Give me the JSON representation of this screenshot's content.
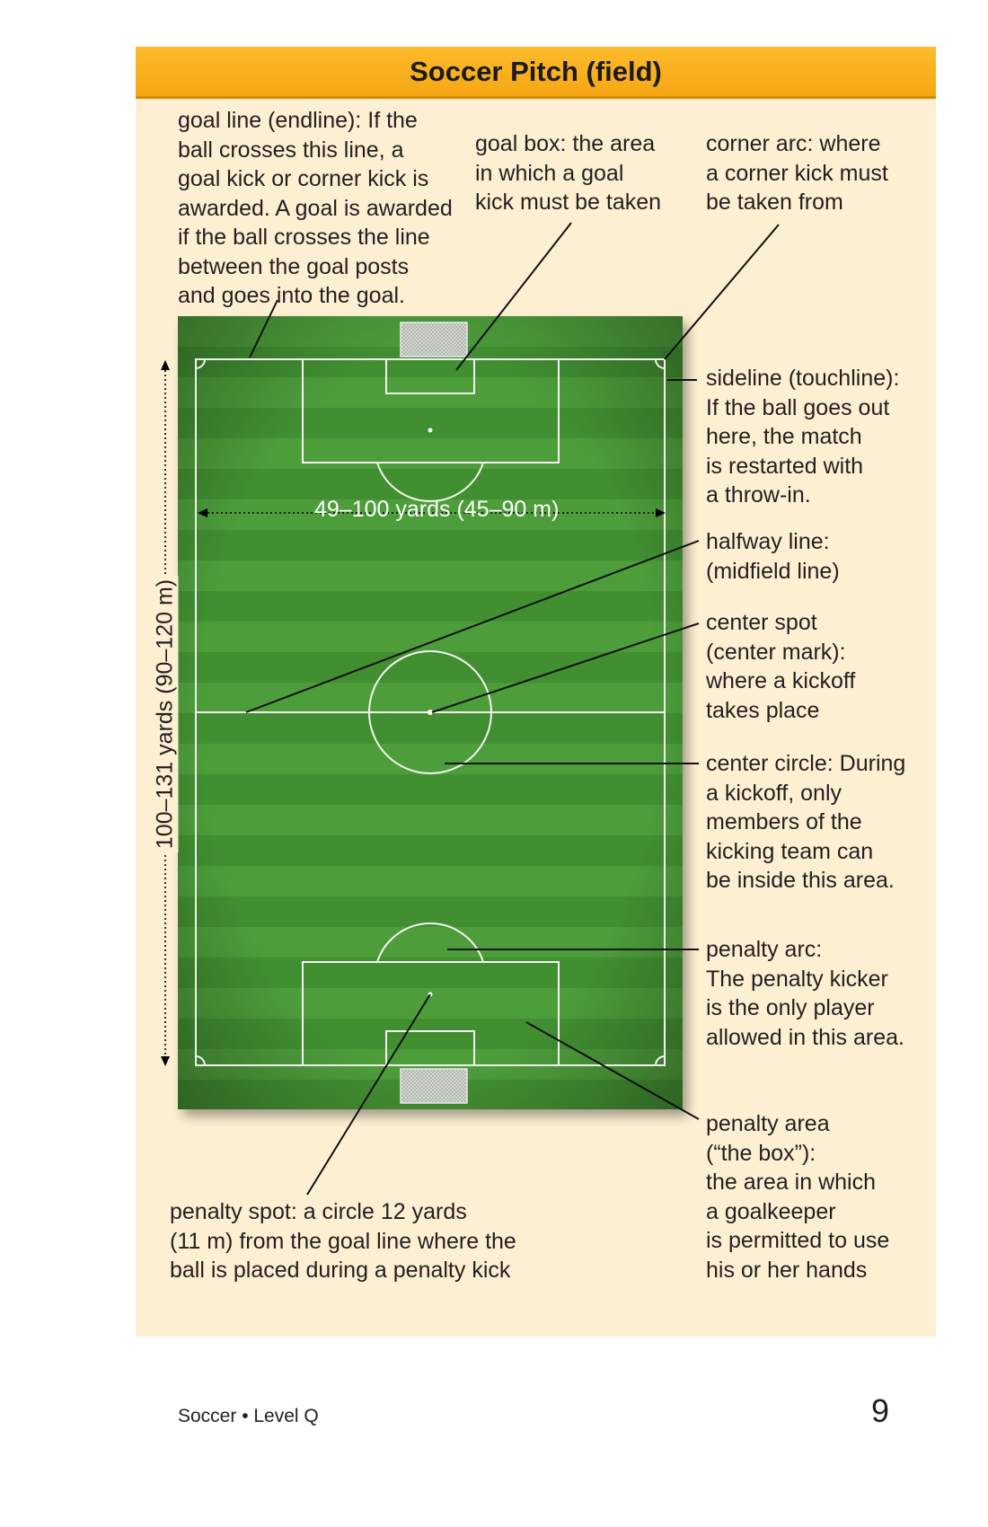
{
  "header": {
    "title": "Soccer Pitch (field)"
  },
  "labels": {
    "goal_line": "goal line (endline): If the\nball crosses this line, a\ngoal kick or corner kick is\nawarded. A goal is awarded\nif the ball crosses the line\nbetween the goal posts\nand goes into the goal.",
    "goal_box": "goal box: the area\nin which a goal\nkick must be taken",
    "corner_arc": "corner arc: where\na corner kick must\nbe taken from",
    "sideline": "sideline (touchline):\nIf the ball goes out\nhere, the match\nis restarted with\na throw-in.",
    "halfway_line": "halfway line:\n(midfield line)",
    "center_spot": "center spot\n(center mark):\nwhere a kickoff\ntakes place",
    "center_circle": "center circle: During\na kickoff, only\nmembers of the\nkicking team can\nbe inside this area.",
    "penalty_arc": "penalty arc:\nThe penalty kicker\nis the only player\nallowed in this area.",
    "penalty_area": "penalty area\n(“the box”):\nthe area in which\na goalkeeper\nis permitted to use\nhis or her hands",
    "penalty_spot": "penalty spot: a circle 12 yards\n(11 m) from the goal line where the\nball is placed during a penalty kick"
  },
  "dimensions": {
    "width": "49–100 yards (45–90 m)",
    "length": "100–131 yards (90–120 m)"
  },
  "footer": {
    "text": "Soccer • Level Q",
    "page_number": "9"
  },
  "colors": {
    "header_bg": "#f7a91b",
    "panel_bg": "#fdf0d2",
    "grass_dark": "#3f8a2e",
    "grass_light": "#4f9c3a"
  }
}
